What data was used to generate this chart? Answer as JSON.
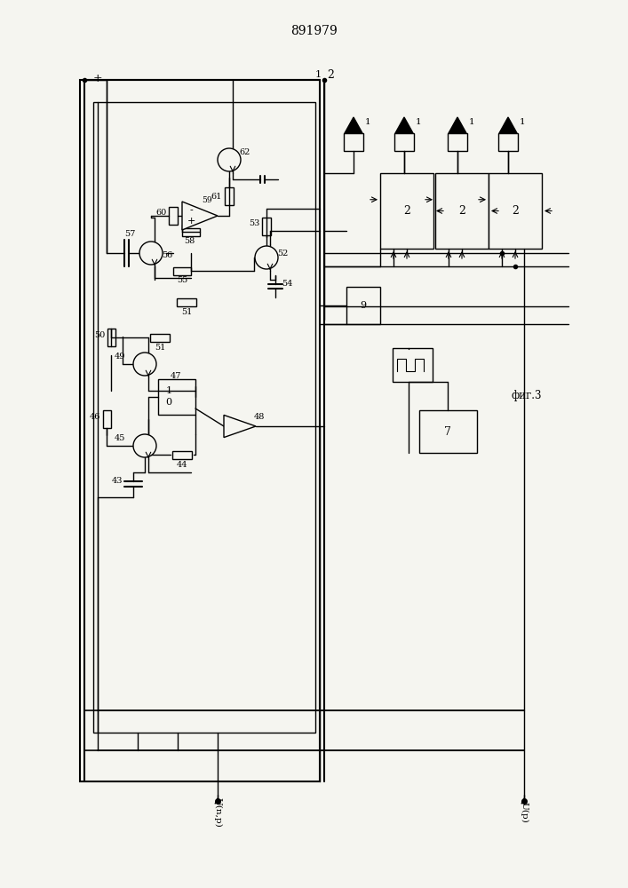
{
  "title": "891979",
  "fig_label": "фиг.3",
  "bg_color": "#f5f5f0",
  "line_color": "#000000",
  "title_fontsize": 10,
  "label_fontsize": 7.5
}
